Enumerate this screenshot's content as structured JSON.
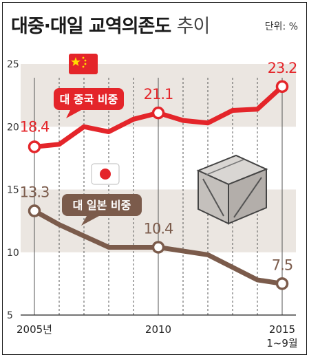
{
  "title": {
    "main": "대중·대일 교역의존도",
    "sub": "추이"
  },
  "unit": "단위: %",
  "x_labels": [
    {
      "main": "2005년",
      "sub": ""
    },
    {
      "main": "2010",
      "sub": ""
    },
    {
      "main": "2015",
      "sub": "1~9월"
    }
  ],
  "colors": {
    "china": "#e4252a",
    "japan": "#7b5b4b",
    "band": "#ebe6e1",
    "grid": "#555555"
  },
  "chart_data": {
    "type": "line",
    "x": [
      "2005",
      "2006",
      "2007",
      "2008",
      "2009",
      "2010",
      "2011",
      "2012",
      "2013",
      "2014",
      "2015 1~9월"
    ],
    "ylim": [
      5,
      25
    ],
    "yticks": [
      5,
      10,
      15,
      20,
      25
    ],
    "grid": "vertical dashed",
    "series": [
      {
        "name": "대 중국 비중",
        "values": [
          18.4,
          18.6,
          20.0,
          19.6,
          20.6,
          21.1,
          20.5,
          20.3,
          21.3,
          21.4,
          23.2
        ],
        "labels": {
          "0": "18.4",
          "5": "21.1",
          "10": "23.2"
        }
      },
      {
        "name": "대 일본 비중",
        "values": [
          13.3,
          12.2,
          11.3,
          10.4,
          10.4,
          10.4,
          10.1,
          9.8,
          8.8,
          7.8,
          7.5
        ],
        "labels": {
          "0": "13.3",
          "5": "10.4",
          "10": "7.5"
        }
      }
    ]
  }
}
